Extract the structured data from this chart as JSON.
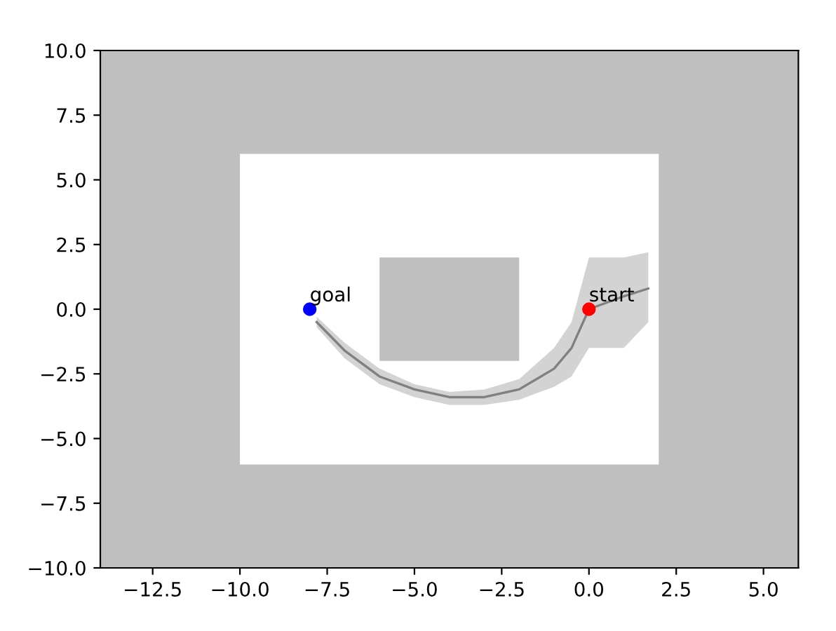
{
  "chart_data": {
    "type": "line",
    "xlim": [
      -14,
      6
    ],
    "ylim": [
      -10,
      10
    ],
    "xticks": [
      {
        "value": -12.5,
        "label": "−12.5"
      },
      {
        "value": -10,
        "label": "−10.0"
      },
      {
        "value": -7.5,
        "label": "−7.5"
      },
      {
        "value": -5,
        "label": "−5.0"
      },
      {
        "value": -2.5,
        "label": "−2.5"
      },
      {
        "value": 0,
        "label": "0.0"
      },
      {
        "value": 2.5,
        "label": "2.5"
      },
      {
        "value": 5,
        "label": "5.0"
      }
    ],
    "yticks": [
      {
        "value": -10,
        "label": "−10.0"
      },
      {
        "value": -7.5,
        "label": "−7.5"
      },
      {
        "value": -5,
        "label": "−5.0"
      },
      {
        "value": -2.5,
        "label": "−2.5"
      },
      {
        "value": 0,
        "label": "0.0"
      },
      {
        "value": 2.5,
        "label": "2.5"
      },
      {
        "value": 5,
        "label": "5.0"
      },
      {
        "value": 7.5,
        "label": "7.5"
      },
      {
        "value": 10,
        "label": "10.0"
      }
    ],
    "series": [
      {
        "x": [
          -7.8,
          -7,
          -6,
          -5,
          -4,
          -3,
          -2,
          -1,
          -0.5,
          0,
          1,
          1.7
        ],
        "values": [
          -0.5,
          -1.6,
          -2.6,
          -3.1,
          -3.4,
          -3.4,
          -3.1,
          -2.3,
          -1.5,
          0,
          0.5,
          0.8
        ],
        "lower": [
          -0.7,
          -1.9,
          -2.9,
          -3.4,
          -3.7,
          -3.7,
          -3.5,
          -3.0,
          -2.6,
          -1.5,
          -1.5,
          -0.5
        ],
        "upper": [
          -0.3,
          -1.3,
          -2.3,
          -2.9,
          -3.2,
          -3.1,
          -2.7,
          -1.5,
          -0.5,
          2,
          2,
          2.2
        ],
        "color": "#808080"
      },
      {
        "type": "scatter",
        "x": [
          0
        ],
        "values": [
          0
        ],
        "color": "#ff0000",
        "marker": "circle"
      },
      {
        "type": "scatter",
        "x": [
          -8
        ],
        "values": [
          0
        ],
        "color": "#0000ff",
        "marker": "circle"
      }
    ],
    "annotations": [
      {
        "text": "start",
        "x": 0,
        "y": 0
      },
      {
        "text": "goal",
        "x": -8,
        "y": 0
      }
    ]
  }
}
